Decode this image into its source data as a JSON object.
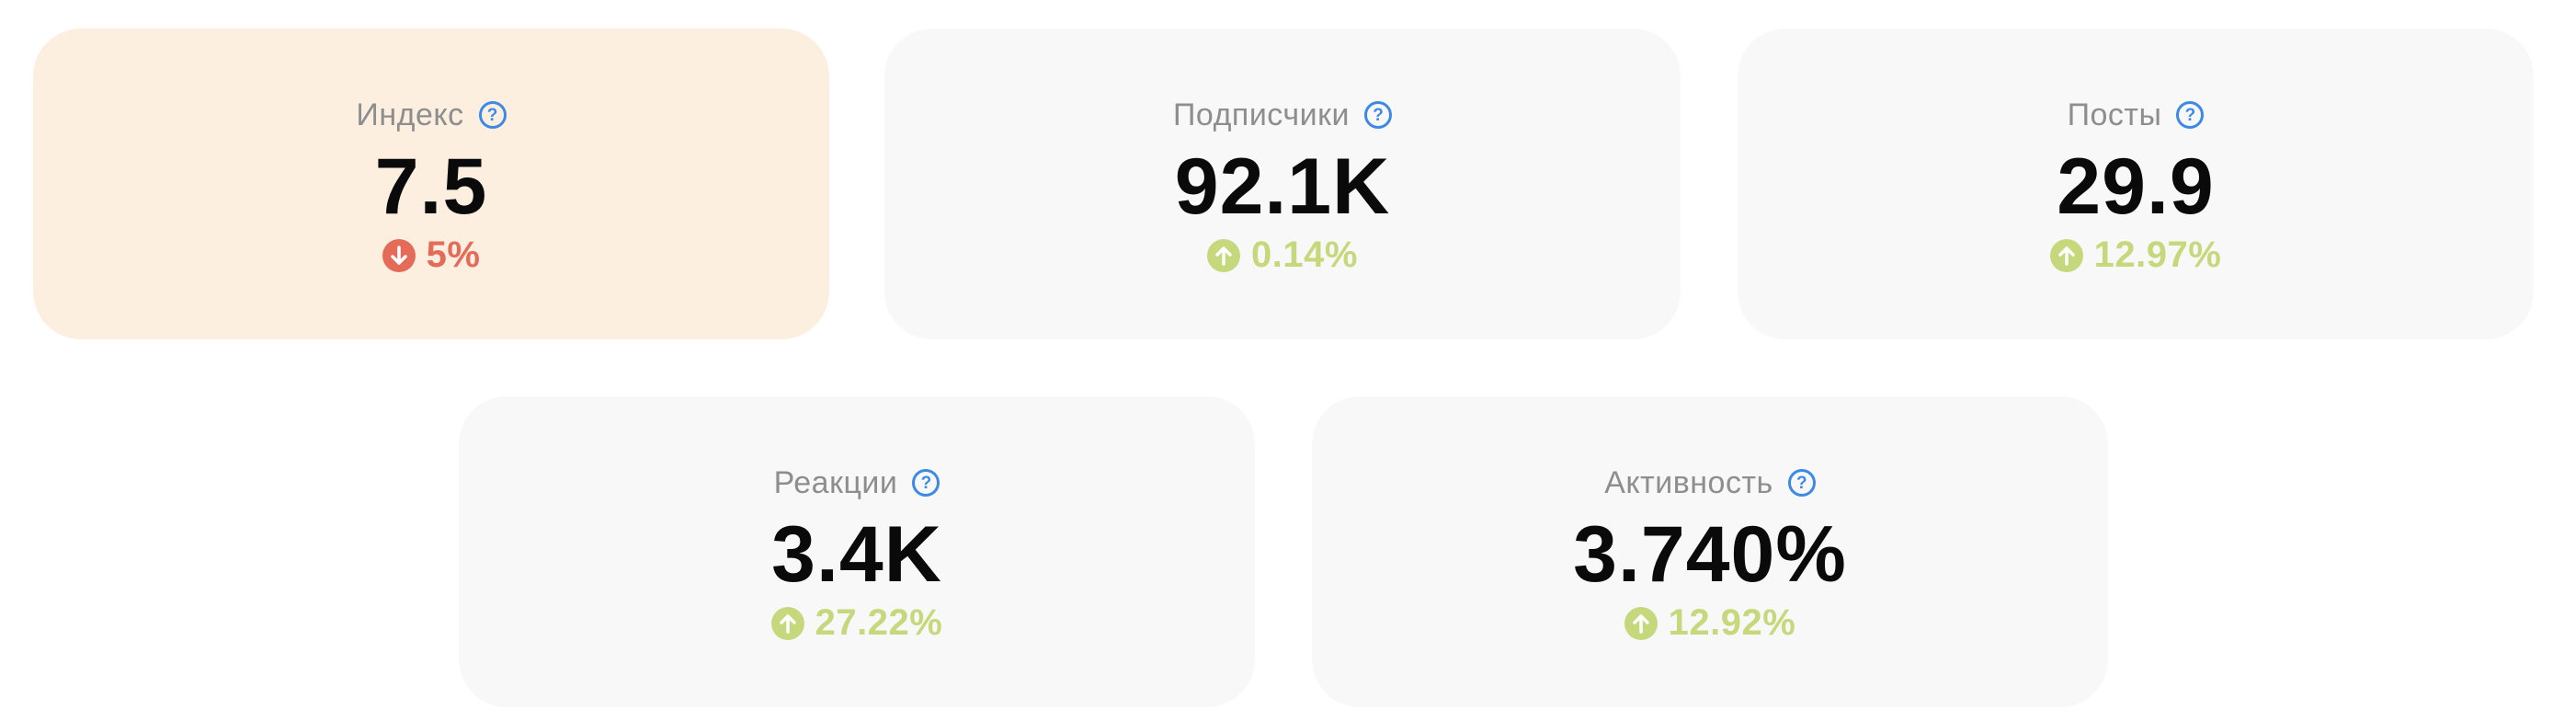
{
  "colors": {
    "up": "#c6d87c",
    "down": "#e46b58",
    "help": "#3d8ae6",
    "card_bg": "#f8f8f8",
    "card_highlight_bg": "#fcefe0"
  },
  "help_icon_glyph": "?",
  "cards": [
    {
      "label": "Индекс",
      "value": "7.5",
      "change": "5%",
      "direction": "down",
      "highlight": true
    },
    {
      "label": "Подписчики",
      "value": "92.1K",
      "change": "0.14%",
      "direction": "up"
    },
    {
      "label": "Посты",
      "value": "29.9",
      "change": "12.97%",
      "direction": "up"
    },
    {
      "label": "Реакции",
      "value": "3.4K",
      "change": "27.22%",
      "direction": "up"
    },
    {
      "label": "Активность",
      "value": "3.740%",
      "change": "12.92%",
      "direction": "up"
    }
  ]
}
